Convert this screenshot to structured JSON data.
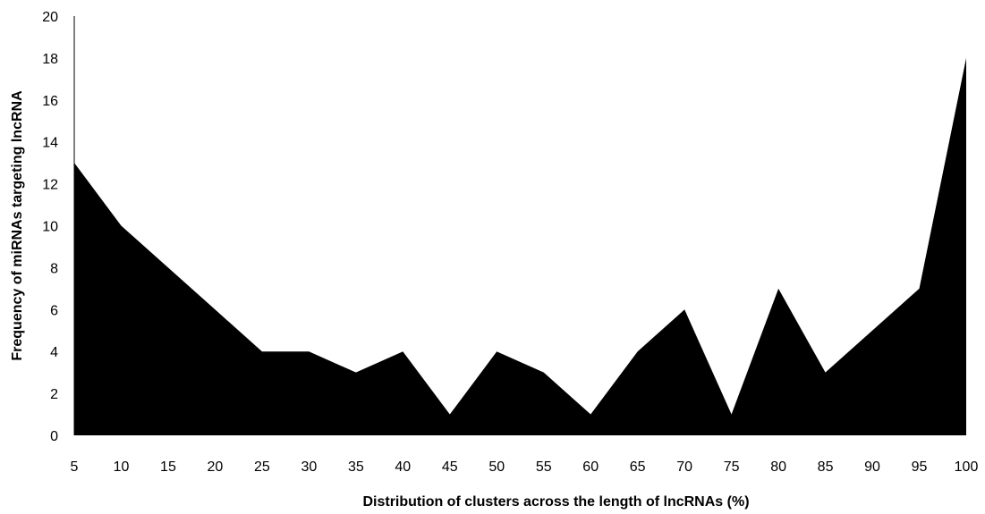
{
  "chart_data": {
    "type": "area",
    "title": "",
    "xlabel": "Distribution of clusters across the length of lncRNAs (%)",
    "ylabel": "Frequency of miRNAs targeting lncRNA",
    "categories": [
      "5",
      "10",
      "15",
      "20",
      "25",
      "30",
      "35",
      "40",
      "45",
      "50",
      "55",
      "60",
      "65",
      "70",
      "75",
      "80",
      "85",
      "90",
      "95",
      "100"
    ],
    "values": [
      13,
      10,
      8,
      6,
      4,
      4,
      3,
      4,
      1,
      4,
      3,
      1,
      4,
      6,
      1,
      7,
      3,
      5,
      7,
      18
    ],
    "ylim": [
      0,
      20
    ],
    "yticks": [
      0,
      2,
      4,
      6,
      8,
      10,
      12,
      14,
      16,
      18,
      20
    ],
    "grid": false,
    "legend": "none",
    "fill_color": "#000000",
    "axis_color": "#000000"
  }
}
